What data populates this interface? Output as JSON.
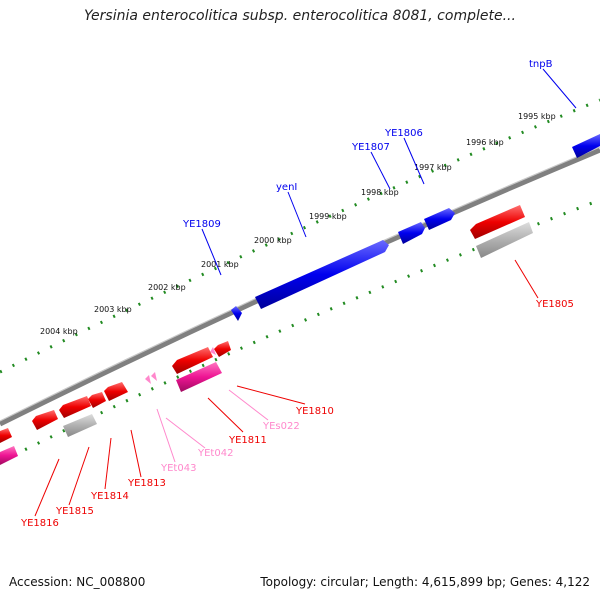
{
  "title": "Yersinia enterocolitica subsp. enterocolitica 8081, complete...",
  "accession": "Accession: NC_008800",
  "summary": "Topology: circular; Length: 4,615,899 bp; Genes: 4,122",
  "colors": {
    "forward_gene": "#0000ee",
    "reverse_gene": "#ee0000",
    "pseudo_gene": "#ee1493",
    "rna_gene": "#ff88cc",
    "backbone": "#808080",
    "ticks": "#228b22",
    "inner_track": "#b0b0b0"
  },
  "kbp_labels": [
    "1995 kbp",
    "1996 kbp",
    "1997 kbp",
    "1998 kbp",
    "1999 kbp",
    "2000 kbp",
    "2001 kbp",
    "2002 kbp",
    "2003 kbp",
    "2004 kbp"
  ],
  "forward_labels": [
    "tnpB",
    "YE1806",
    "YE1807",
    "yenI",
    "YE1809"
  ],
  "reverse_labels": [
    "YE1805",
    "YE1810",
    "YEs022",
    "YE1811",
    "YEt042",
    "YEt043",
    "YE1813",
    "YE1814",
    "YE1815",
    "YE1816"
  ]
}
